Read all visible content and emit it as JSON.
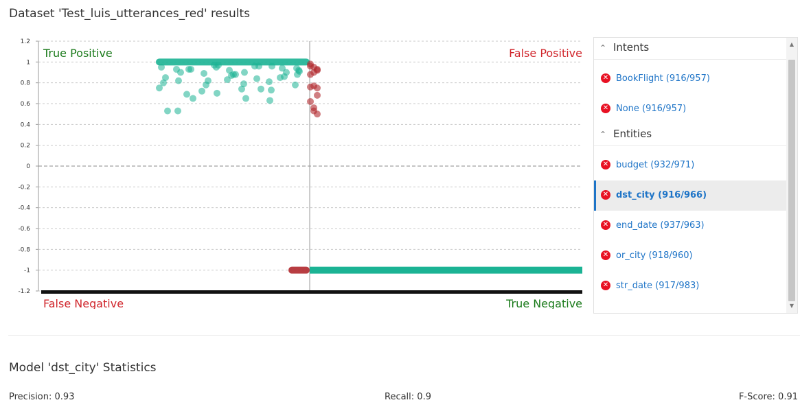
{
  "page": {
    "title": "Dataset 'Test_luis_utterances_red' results"
  },
  "chart": {
    "quadrant_labels": {
      "top_left": "True Positive",
      "top_right": "False Positive",
      "bottom_left": "False Negative",
      "bottom_right": "True Negative"
    },
    "colors": {
      "true": "#1bb394",
      "false": "#b0282d",
      "label_green": "#1a7a1a",
      "label_red": "#d0252b"
    }
  },
  "chart_data": {
    "type": "scatter",
    "title": "",
    "xlabel": "",
    "ylabel": "",
    "ylim": [
      -1.2,
      1.2
    ],
    "yticks": [
      "1.2",
      "1",
      "0.8",
      "0.6",
      "0.4",
      "0.2",
      "0",
      "-0.2",
      "-0.4",
      "-0.6",
      "-0.8",
      "-1",
      "-1.2"
    ],
    "grid": true,
    "series": [
      {
        "color": "#1bb394",
        "y": [
          0.75,
          0.83,
          0.78,
          0.7,
          0.85,
          0.72,
          0.63,
          0.69,
          0.96,
          0.93,
          0.9,
          0.95,
          0.92,
          0.88,
          0.97,
          0.94,
          0.89,
          0.96,
          0.93,
          0.84,
          0.82,
          0.74,
          0.8,
          0.87,
          0.91,
          0.95,
          0.86,
          0.78,
          0.81,
          0.93,
          0.96,
          0.9,
          0.79,
          0.85,
          0.88,
          0.94,
          0.97,
          0.9,
          0.82,
          0.73,
          0.65,
          0.74,
          0.53,
          0.65,
          0.53,
          0.88,
          0.92
        ]
      },
      {
        "color": "#b0282d",
        "y": [
          0.98,
          0.95,
          0.92,
          0.96,
          0.9,
          0.93,
          0.88,
          0.77,
          0.75,
          0.76,
          0.56,
          0.5,
          0.62,
          0.53,
          0.68
        ]
      }
    ]
  },
  "panel": {
    "intents": {
      "header": "Intents",
      "items": [
        "BookFlight (916/957)",
        "None (916/957)"
      ]
    },
    "entities": {
      "header": "Entities",
      "items": [
        "budget (932/971)",
        "dst_city (916/966)",
        "end_date (937/963)",
        "or_city (918/960)",
        "str_date (917/983)"
      ],
      "selected": "dst_city (916/966)"
    }
  },
  "stats": {
    "title": "Model 'dst_city' Statistics",
    "precision": "Precision: 0.93",
    "recall": "Recall: 0.9",
    "fscore": "F-Score: 0.91"
  }
}
